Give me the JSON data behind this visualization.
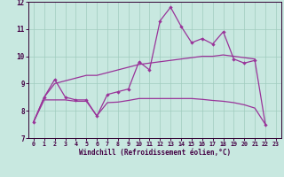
{
  "xlabel": "Windchill (Refroidissement éolien,°C)",
  "bg_color": "#c8e8e0",
  "grid_color": "#a0ccbe",
  "line_color": "#993399",
  "spine_color": "#330033",
  "tick_color": "#440044",
  "xlim": [
    -0.5,
    23.5
  ],
  "ylim": [
    7,
    12
  ],
  "xticks": [
    0,
    1,
    2,
    3,
    4,
    5,
    6,
    7,
    8,
    9,
    10,
    11,
    12,
    13,
    14,
    15,
    16,
    17,
    18,
    19,
    20,
    21,
    22,
    23
  ],
  "yticks": [
    7,
    8,
    9,
    10,
    11,
    12
  ],
  "series1_x": [
    0,
    1,
    2,
    3,
    4,
    5,
    6,
    7,
    8,
    9,
    10,
    11,
    12,
    13,
    14,
    15,
    16,
    17,
    18,
    19,
    20,
    21,
    22
  ],
  "series1_y": [
    7.6,
    8.5,
    9.15,
    8.5,
    8.4,
    8.4,
    7.8,
    8.6,
    8.7,
    8.8,
    9.8,
    9.5,
    11.3,
    11.8,
    11.1,
    10.5,
    10.65,
    10.45,
    10.9,
    9.9,
    9.75,
    9.85,
    7.5
  ],
  "series2_x": [
    0,
    1,
    2,
    3,
    4,
    5,
    6,
    7,
    8,
    9,
    10,
    11,
    12,
    13,
    14,
    15,
    16,
    17,
    18,
    19,
    20,
    21
  ],
  "series2_y": [
    7.6,
    8.5,
    9.0,
    9.1,
    9.2,
    9.3,
    9.3,
    9.4,
    9.5,
    9.6,
    9.7,
    9.75,
    9.8,
    9.85,
    9.9,
    9.95,
    10.0,
    10.0,
    10.05,
    10.0,
    9.95,
    9.9
  ],
  "series3_x": [
    0,
    1,
    2,
    3,
    4,
    5,
    6,
    7,
    8,
    9,
    10,
    11,
    12,
    13,
    14,
    15,
    16,
    17,
    18,
    19,
    20,
    21,
    22
  ],
  "series3_y": [
    7.6,
    8.4,
    8.4,
    8.4,
    8.35,
    8.35,
    7.82,
    8.3,
    8.32,
    8.38,
    8.45,
    8.45,
    8.45,
    8.45,
    8.45,
    8.45,
    8.42,
    8.38,
    8.35,
    8.3,
    8.22,
    8.1,
    7.5
  ]
}
